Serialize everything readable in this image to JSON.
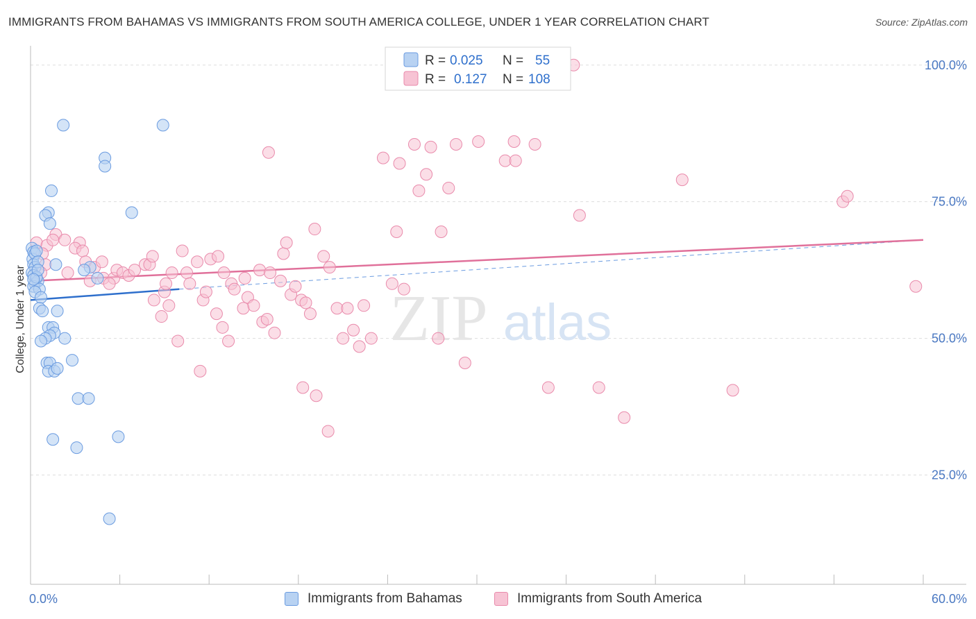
{
  "header": {
    "title": "IMMIGRANTS FROM BAHAMAS VS IMMIGRANTS FROM SOUTH AMERICA COLLEGE, UNDER 1 YEAR CORRELATION CHART",
    "source": "Source: ZipAtlas.com"
  },
  "watermark": {
    "zip": "ZIP",
    "atlas": "atlas"
  },
  "colors": {
    "blue_fill": "#b8d2f2",
    "blue_stroke": "#6a9be0",
    "blue_line": "#2e6fcc",
    "pink_fill": "#f7c3d4",
    "pink_stroke": "#e98aab",
    "pink_line": "#e0709a",
    "tick_text": "#4a78c2",
    "grid": "#dddddd"
  },
  "legend": {
    "rows": [
      {
        "r_label": "R =",
        "r_value": "0.025",
        "n_label": "N =",
        "n_value": "55"
      },
      {
        "r_label": "R =",
        "r_value": "0.127",
        "n_label": "N =",
        "n_value": "108"
      }
    ]
  },
  "chart_data": {
    "type": "scatter",
    "title": "IMMIGRANTS FROM BAHAMAS VS IMMIGRANTS FROM SOUTH AMERICA COLLEGE, UNDER 1 YEAR CORRELATION CHART",
    "xlabel": "",
    "ylabel": "College, Under 1 year",
    "xlim": [
      0,
      60
    ],
    "ylim": [
      5,
      102
    ],
    "x_ticks": [
      "0.0%",
      "60.0%"
    ],
    "y_ticks": [
      {
        "value": 25,
        "label": "25.0%"
      },
      {
        "value": 50,
        "label": "50.0%"
      },
      {
        "value": 75,
        "label": "75.0%"
      },
      {
        "value": 100,
        "label": "100.0%"
      }
    ],
    "series": [
      {
        "name": "Immigrants from Bahamas",
        "r": 0.025,
        "n": 55,
        "trend": {
          "x0": 0.0,
          "y0": 57.0,
          "x1": 10.0,
          "y1": 59.0,
          "dashed_to_x": 60.0,
          "dashed_to_y": 68.0
        },
        "points": [
          [
            0.1,
            66.5
          ],
          [
            0.2,
            65.8
          ],
          [
            0.15,
            64.5
          ],
          [
            0.3,
            65.5
          ],
          [
            0.4,
            66.0
          ],
          [
            0.2,
            63.5
          ],
          [
            0.3,
            63.0
          ],
          [
            0.5,
            64.0
          ],
          [
            0.1,
            62.0
          ],
          [
            0.2,
            61.5
          ],
          [
            0.4,
            61.0
          ],
          [
            0.3,
            60.0
          ],
          [
            0.5,
            60.5
          ],
          [
            0.2,
            59.5
          ],
          [
            0.6,
            59.0
          ],
          [
            0.3,
            58.5
          ],
          [
            0.7,
            57.5
          ],
          [
            0.6,
            55.5
          ],
          [
            0.8,
            55.0
          ],
          [
            1.2,
            73.0
          ],
          [
            1.0,
            72.5
          ],
          [
            1.3,
            71.0
          ],
          [
            1.4,
            77.0
          ],
          [
            2.2,
            89.0
          ],
          [
            1.7,
            63.5
          ],
          [
            1.8,
            55.0
          ],
          [
            1.2,
            52.0
          ],
          [
            1.5,
            52.0
          ],
          [
            1.6,
            51.0
          ],
          [
            1.3,
            50.5
          ],
          [
            1.0,
            50.0
          ],
          [
            2.3,
            50.0
          ],
          [
            0.7,
            49.5
          ],
          [
            1.1,
            45.5
          ],
          [
            1.3,
            45.5
          ],
          [
            1.2,
            44.0
          ],
          [
            1.6,
            44.0
          ],
          [
            1.8,
            44.5
          ],
          [
            2.8,
            46.0
          ],
          [
            5.0,
            83.0
          ],
          [
            5.0,
            81.5
          ],
          [
            4.0,
            63.0
          ],
          [
            4.5,
            61.0
          ],
          [
            3.6,
            62.5
          ],
          [
            6.8,
            73.0
          ],
          [
            8.9,
            89.0
          ],
          [
            3.2,
            39.0
          ],
          [
            3.9,
            39.0
          ],
          [
            1.5,
            31.5
          ],
          [
            3.1,
            30.0
          ],
          [
            5.9,
            32.0
          ],
          [
            5.3,
            17.0
          ],
          [
            0.4,
            61.2
          ],
          [
            0.5,
            62.5
          ],
          [
            0.2,
            60.8
          ]
        ]
      },
      {
        "name": "Immigrants from South America",
        "r": 0.127,
        "n": 108,
        "trend": {
          "x0": 0.0,
          "y0": 60.5,
          "x1": 60.0,
          "y1": 68.0
        },
        "points": [
          [
            0.4,
            67.5
          ],
          [
            1.1,
            67.0
          ],
          [
            0.8,
            65.5
          ],
          [
            1.7,
            69.0
          ],
          [
            1.5,
            68.0
          ],
          [
            2.3,
            68.0
          ],
          [
            3.3,
            67.5
          ],
          [
            1.0,
            63.5
          ],
          [
            0.7,
            62.0
          ],
          [
            3.0,
            66.5
          ],
          [
            3.5,
            66.0
          ],
          [
            3.7,
            64.0
          ],
          [
            4.3,
            63.0
          ],
          [
            4.8,
            64.0
          ],
          [
            4.9,
            61.0
          ],
          [
            5.6,
            61.0
          ],
          [
            5.3,
            60.0
          ],
          [
            5.8,
            62.5
          ],
          [
            6.2,
            62.0
          ],
          [
            6.6,
            61.5
          ],
          [
            7.0,
            62.5
          ],
          [
            7.7,
            63.5
          ],
          [
            8.0,
            63.5
          ],
          [
            8.2,
            65.0
          ],
          [
            8.3,
            57.0
          ],
          [
            8.8,
            54.0
          ],
          [
            9.0,
            58.5
          ],
          [
            9.3,
            56.0
          ],
          [
            9.1,
            60.0
          ],
          [
            9.5,
            62.0
          ],
          [
            9.9,
            49.5
          ],
          [
            10.2,
            66.0
          ],
          [
            10.5,
            62.0
          ],
          [
            10.7,
            60.0
          ],
          [
            11.2,
            64.0
          ],
          [
            11.6,
            57.0
          ],
          [
            11.8,
            58.5
          ],
          [
            12.1,
            64.5
          ],
          [
            12.5,
            54.5
          ],
          [
            12.6,
            65.0
          ],
          [
            12.9,
            52.0
          ],
          [
            13.0,
            62.0
          ],
          [
            13.3,
            49.5
          ],
          [
            13.5,
            60.0
          ],
          [
            13.7,
            59.0
          ],
          [
            14.4,
            61.0
          ],
          [
            14.6,
            57.5
          ],
          [
            14.3,
            55.5
          ],
          [
            15.0,
            56.0
          ],
          [
            15.4,
            62.5
          ],
          [
            15.6,
            53.0
          ],
          [
            15.9,
            53.5
          ],
          [
            16.1,
            62.0
          ],
          [
            16.4,
            51.0
          ],
          [
            16.8,
            60.5
          ],
          [
            17.0,
            65.5
          ],
          [
            17.2,
            67.5
          ],
          [
            17.5,
            58.0
          ],
          [
            17.8,
            59.5
          ],
          [
            18.2,
            57.0
          ],
          [
            18.5,
            56.5
          ],
          [
            18.8,
            54.5
          ],
          [
            19.1,
            70.0
          ],
          [
            19.7,
            65.0
          ],
          [
            20.1,
            63.0
          ],
          [
            20.6,
            55.5
          ],
          [
            21.0,
            50.0
          ],
          [
            21.3,
            55.5
          ],
          [
            21.7,
            51.5
          ],
          [
            22.1,
            48.5
          ],
          [
            22.4,
            56.0
          ],
          [
            22.9,
            50.0
          ],
          [
            23.7,
            83.0
          ],
          [
            24.3,
            60.0
          ],
          [
            24.6,
            69.5
          ],
          [
            24.8,
            82.0
          ],
          [
            25.1,
            59.0
          ],
          [
            25.8,
            85.5
          ],
          [
            26.1,
            77.0
          ],
          [
            26.6,
            80.0
          ],
          [
            26.9,
            85.0
          ],
          [
            27.4,
            50.0
          ],
          [
            27.6,
            69.5
          ],
          [
            28.1,
            77.5
          ],
          [
            28.6,
            85.5
          ],
          [
            29.2,
            45.5
          ],
          [
            30.1,
            86.0
          ],
          [
            31.9,
            82.5
          ],
          [
            32.5,
            86.0
          ],
          [
            32.6,
            82.5
          ],
          [
            33.9,
            85.5
          ],
          [
            34.8,
            41.0
          ],
          [
            36.9,
            72.5
          ],
          [
            38.2,
            41.0
          ],
          [
            39.9,
            35.5
          ],
          [
            43.8,
            79.0
          ],
          [
            47.2,
            40.5
          ],
          [
            54.6,
            75.0
          ],
          [
            54.9,
            76.0
          ],
          [
            59.5,
            59.5
          ],
          [
            16.0,
            84.0
          ],
          [
            20.0,
            33.0
          ],
          [
            19.2,
            39.5
          ],
          [
            18.3,
            41.0
          ],
          [
            36.5,
            100.0
          ],
          [
            11.4,
            44.0
          ],
          [
            4.0,
            60.5
          ],
          [
            2.5,
            62.0
          ]
        ]
      }
    ]
  },
  "bottom_legend": [
    {
      "label": "Immigrants from Bahamas"
    },
    {
      "label": "Immigrants from South America"
    }
  ]
}
